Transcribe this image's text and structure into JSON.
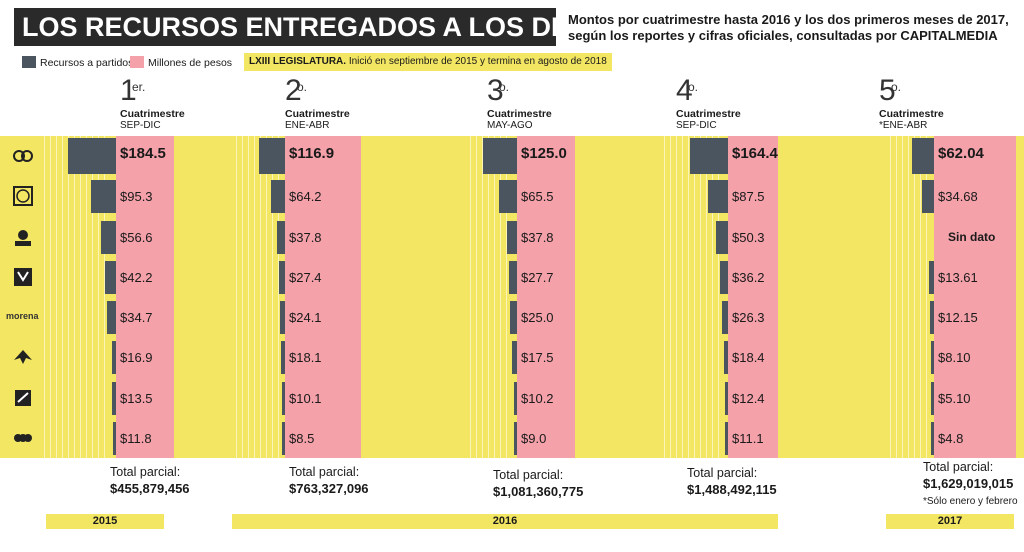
{
  "header": {
    "title": "LOS RECURSOS ENTREGADOS A LOS DIPUTADOS",
    "subtitle_line1": "Montos por cuatrimestre hasta 2016 y los dos primeros meses de 2017,",
    "subtitle_line2": "según los reportes y cifras oficiales, consultadas por CAPITALMEDIA"
  },
  "legend": {
    "items": [
      {
        "label": "Recursos a partidos",
        "color": "#4a5560"
      },
      {
        "label": "Millones de pesos",
        "color": "#f4a1aa"
      }
    ],
    "note_bold": "LXIII LEGISLATURA.",
    "note_text": "Inició en septiembre de 2015 y termina en agosto de 2018"
  },
  "parties": [
    {
      "icon": "prd-logo-icon",
      "label": ""
    },
    {
      "icon": "pan-logo-icon",
      "label": ""
    },
    {
      "icon": "prd-sun-logo-icon",
      "label": ""
    },
    {
      "icon": "verde-logo-icon",
      "label": ""
    },
    {
      "icon": "morena-logo-icon",
      "label": "morena"
    },
    {
      "icon": "mc-eagle-logo-icon",
      "label": ""
    },
    {
      "icon": "nueva-alianza-logo-icon",
      "label": ""
    },
    {
      "icon": "encuentro-social-logo-icon",
      "label": ""
    }
  ],
  "chart_data": {
    "type": "bar",
    "title": "LOS RECURSOS ENTREGADOS A LOS DIPUTADOS",
    "unit": "Millones de pesos",
    "periods": [
      {
        "num": "1",
        "sup": "er.",
        "label": "Cuatrimestre",
        "range": "SEP-DIC",
        "year": "2015",
        "values": [
          "$184.5",
          "$95.3",
          "$56.6",
          "$42.2",
          "$34.7",
          "$16.9",
          "$13.5",
          "$11.8"
        ],
        "numeric": [
          184.5,
          95.3,
          56.6,
          42.2,
          34.7,
          16.9,
          13.5,
          11.8
        ],
        "total_label": "Total parcial:",
        "total": "$455,879,456"
      },
      {
        "num": "2",
        "sup": "o.",
        "label": "Cuatrimestre",
        "range": "ENE-ABR",
        "year": "2016",
        "values": [
          "$116.9",
          "$64.2",
          "$37.8",
          "$27.4",
          "$24.1",
          "$18.1",
          "$10.1",
          "$8.5"
        ],
        "numeric": [
          116.9,
          64.2,
          37.8,
          27.4,
          24.1,
          18.1,
          10.1,
          8.5
        ],
        "total_label": "Total parcial:",
        "total": "$763,327,096"
      },
      {
        "num": "3",
        "sup": "o.",
        "label": "Cuatrimestre",
        "range": "MAY-AGO",
        "year": "2016",
        "values": [
          "$125.0",
          "$65.5",
          "$37.8",
          "$27.7",
          "$25.0",
          "$17.5",
          "$10.2",
          "$9.0"
        ],
        "numeric": [
          125.0,
          65.5,
          37.8,
          27.7,
          25.0,
          17.5,
          10.2,
          9.0
        ],
        "total_label": "Total parcial:",
        "total": "$1,081,360,775"
      },
      {
        "num": "4",
        "sup": "o.",
        "label": "Cuatrimestre",
        "range": "SEP-DIC",
        "year": "2016",
        "values": [
          "$164.4",
          "$87.5",
          "$50.3",
          "$36.2",
          "$26.3",
          "$18.4",
          "$12.4",
          "$11.1"
        ],
        "numeric": [
          164.4,
          87.5,
          50.3,
          36.2,
          26.3,
          18.4,
          12.4,
          11.1
        ],
        "total_label": "Total parcial:",
        "total": "$1,488,492,115"
      },
      {
        "num": "5",
        "sup": "o.",
        "label": "Cuatrimestre",
        "range": "*ENE-ABR",
        "year": "2017",
        "values": [
          "$62.04",
          "$34.68",
          "Sin dato",
          "$13.61",
          "$12.15",
          "$8.10",
          "$5.10",
          "$4.8"
        ],
        "numeric": [
          62.04,
          34.68,
          null,
          13.61,
          12.15,
          8.1,
          5.1,
          4.8
        ],
        "total_label": "Total parcial:",
        "total": "$1,629,019,015",
        "footnote": "*Sólo enero y febrero"
      }
    ],
    "years": [
      "2015",
      "2016",
      "2017"
    ]
  }
}
